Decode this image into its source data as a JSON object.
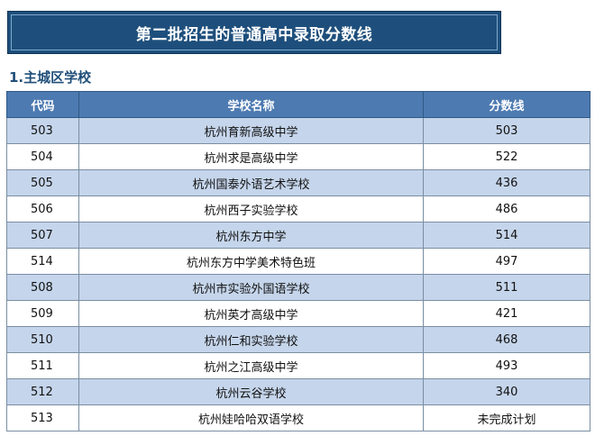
{
  "banner": {
    "title": "第二批招生的普通高中录取分数线"
  },
  "section": {
    "title": "1.主城区学校"
  },
  "table": {
    "headers": [
      "代码",
      "学校名称",
      "分数线"
    ],
    "rows": [
      {
        "code": "503",
        "name": "杭州育新高级中学",
        "score": "503"
      },
      {
        "code": "504",
        "name": "杭州求是高级中学",
        "score": "522"
      },
      {
        "code": "505",
        "name": "杭州国泰外语艺术学校",
        "score": "436"
      },
      {
        "code": "506",
        "name": "杭州西子实验学校",
        "score": "486"
      },
      {
        "code": "507",
        "name": "杭州东方中学",
        "score": "514"
      },
      {
        "code": "514",
        "name": "杭州东方中学美术特色班",
        "score": "497"
      },
      {
        "code": "508",
        "name": "杭州市实验外国语学校",
        "score": "511"
      },
      {
        "code": "509",
        "name": "杭州英才高级中学",
        "score": "421"
      },
      {
        "code": "510",
        "name": "杭州仁和实验学校",
        "score": "468"
      },
      {
        "code": "511",
        "name": "杭州之江高级中学",
        "score": "493"
      },
      {
        "code": "512",
        "name": "杭州云谷学校",
        "score": "340"
      },
      {
        "code": "513",
        "name": "杭州娃哈哈双语学校",
        "score": "未完成计划"
      }
    ]
  },
  "colors": {
    "banner_bg": "#1e4f7c",
    "header_bg": "#4d7ab1",
    "odd_row_bg": "#c5d5eb",
    "section_title": "#1f4e79"
  }
}
